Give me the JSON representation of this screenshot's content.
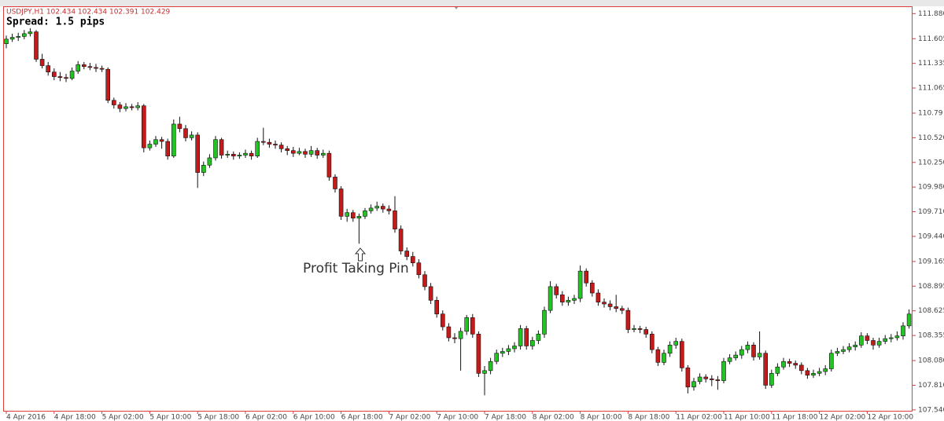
{
  "chart_data": {
    "type": "candlestick",
    "title": "USDJPY,H1  102.434 102.434 102.391 102.429",
    "subtitle": "Spread: 1.5 pips",
    "annotation": "Profit Taking Pin",
    "annotation_index": 59,
    "up_color": "#22c422",
    "down_color": "#c41a1a",
    "ylim": [
      107.53,
      111.96
    ],
    "yticks": [
      {
        "value": 111.88,
        "label": "111.880"
      },
      111.605,
      111.335,
      111.065,
      110.79,
      {
        "value": 110.52,
        "label": "110.520"
      },
      {
        "value": 110.25,
        "label": "110.250"
      },
      {
        "value": 109.98,
        "label": "109.980"
      },
      {
        "value": 109.71,
        "label": "109.710"
      },
      {
        "value": 109.44,
        "label": "109.440"
      },
      109.165,
      108.895,
      108.625,
      108.355,
      {
        "value": 108.08,
        "label": "108.080"
      },
      {
        "value": 107.81,
        "label": "107.810"
      },
      {
        "value": 107.54,
        "label": "107.540"
      }
    ],
    "categories": [
      "4 Apr 2016",
      null,
      null,
      null,
      null,
      null,
      null,
      null,
      "4 Apr 18:00",
      null,
      null,
      null,
      null,
      null,
      null,
      null,
      "5 Apr 02:00",
      null,
      null,
      null,
      null,
      null,
      null,
      null,
      "5 Apr 10:00",
      null,
      null,
      null,
      null,
      null,
      null,
      null,
      "5 Apr 18:00",
      null,
      null,
      null,
      null,
      null,
      null,
      null,
      "6 Apr 02:00",
      null,
      null,
      null,
      null,
      null,
      null,
      null,
      "6 Apr 10:00",
      null,
      null,
      null,
      null,
      null,
      null,
      null,
      "6 Apr 18:00",
      null,
      null,
      null,
      null,
      null,
      null,
      null,
      "7 Apr 02:00",
      null,
      null,
      null,
      null,
      null,
      null,
      null,
      "7 Apr 10:00",
      null,
      null,
      null,
      null,
      null,
      null,
      null,
      "7 Apr 18:00",
      null,
      null,
      null,
      null,
      null,
      null,
      null,
      "8 Apr 02:00",
      null,
      null,
      null,
      null,
      null,
      null,
      null,
      "8 Apr 10:00",
      null,
      null,
      null,
      null,
      null,
      null,
      null,
      "8 Apr 18:00",
      null,
      null,
      null,
      null,
      null,
      null,
      null,
      "11 Apr 02:00",
      null,
      null,
      null,
      null,
      null,
      null,
      null,
      "11 Apr 10:00",
      null,
      null,
      null,
      null,
      null,
      null,
      null,
      "11 Apr 18:00",
      null,
      null,
      null,
      null,
      null,
      null,
      null,
      "12 Apr 02:00",
      null,
      null,
      null,
      null,
      null,
      null,
      null,
      "12 Apr 10:00",
      null,
      null,
      null,
      null,
      null,
      null,
      null
    ],
    "ohlc": [
      [
        111.55,
        111.64,
        111.5,
        111.6
      ],
      [
        111.6,
        111.66,
        111.57,
        111.62
      ],
      [
        111.62,
        111.67,
        111.58,
        111.63
      ],
      [
        111.63,
        111.7,
        111.6,
        111.66
      ],
      [
        111.66,
        111.72,
        111.63,
        111.68
      ],
      [
        111.68,
        111.7,
        111.35,
        111.38
      ],
      [
        111.38,
        111.44,
        111.28,
        111.31
      ],
      [
        111.31,
        111.35,
        111.2,
        111.24
      ],
      [
        111.24,
        111.28,
        111.15,
        111.19
      ],
      [
        111.19,
        111.24,
        111.14,
        111.18
      ],
      [
        111.18,
        111.22,
        111.13,
        111.17
      ],
      [
        111.17,
        111.29,
        111.15,
        111.25
      ],
      [
        111.25,
        111.36,
        111.22,
        111.32
      ],
      [
        111.32,
        111.35,
        111.27,
        111.3
      ],
      [
        111.3,
        111.34,
        111.26,
        111.29
      ],
      [
        111.29,
        111.33,
        111.24,
        111.28
      ],
      [
        111.28,
        111.31,
        111.24,
        111.27
      ],
      [
        111.27,
        111.29,
        110.9,
        110.93
      ],
      [
        110.93,
        110.96,
        110.84,
        110.88
      ],
      [
        110.88,
        110.91,
        110.8,
        110.84
      ],
      [
        110.84,
        110.9,
        110.81,
        110.86
      ],
      [
        110.86,
        110.89,
        110.82,
        110.85
      ],
      [
        110.85,
        110.91,
        110.82,
        110.87
      ],
      [
        110.87,
        110.89,
        110.36,
        110.41
      ],
      [
        110.41,
        110.49,
        110.38,
        110.45
      ],
      [
        110.45,
        110.54,
        110.42,
        110.5
      ],
      [
        110.5,
        110.53,
        110.4,
        110.48
      ],
      [
        110.48,
        110.51,
        110.28,
        110.32
      ],
      [
        110.32,
        110.72,
        110.3,
        110.67
      ],
      [
        110.67,
        110.75,
        110.58,
        110.62
      ],
      [
        110.62,
        110.66,
        110.48,
        110.52
      ],
      [
        110.52,
        110.59,
        110.49,
        110.55
      ],
      [
        110.55,
        110.58,
        109.97,
        110.14
      ],
      [
        110.14,
        110.26,
        110.1,
        110.22
      ],
      [
        110.22,
        110.34,
        110.19,
        110.3
      ],
      [
        110.3,
        110.54,
        110.27,
        110.5
      ],
      [
        110.5,
        110.52,
        110.29,
        110.33
      ],
      [
        110.33,
        110.38,
        110.3,
        110.34
      ],
      [
        110.34,
        110.37,
        110.28,
        110.32
      ],
      [
        110.32,
        110.36,
        110.29,
        110.33
      ],
      [
        110.33,
        110.39,
        110.3,
        110.35
      ],
      [
        110.35,
        110.38,
        110.28,
        110.32
      ],
      [
        110.32,
        110.52,
        110.3,
        110.48
      ],
      [
        110.48,
        110.63,
        110.44,
        110.47
      ],
      [
        110.47,
        110.51,
        110.41,
        110.45
      ],
      [
        110.45,
        110.49,
        110.4,
        110.44
      ],
      [
        110.44,
        110.47,
        110.36,
        110.4
      ],
      [
        110.4,
        110.43,
        110.33,
        110.38
      ],
      [
        110.38,
        110.42,
        110.31,
        110.35
      ],
      [
        110.35,
        110.41,
        110.33,
        110.37
      ],
      [
        110.37,
        110.4,
        110.3,
        110.34
      ],
      [
        110.34,
        110.43,
        110.31,
        110.38
      ],
      [
        110.38,
        110.41,
        110.29,
        110.33
      ],
      [
        110.33,
        110.39,
        110.3,
        110.35
      ],
      [
        110.35,
        110.38,
        110.05,
        110.09
      ],
      [
        110.09,
        110.12,
        109.92,
        109.96
      ],
      [
        109.96,
        109.99,
        109.62,
        109.66
      ],
      [
        109.66,
        109.74,
        109.6,
        109.7
      ],
      [
        109.7,
        109.73,
        109.6,
        109.64
      ],
      [
        109.64,
        109.69,
        109.36,
        109.66
      ],
      [
        109.66,
        109.75,
        109.63,
        109.72
      ],
      [
        109.72,
        109.79,
        109.69,
        109.75
      ],
      [
        109.75,
        109.82,
        109.72,
        109.77
      ],
      [
        109.77,
        109.8,
        109.7,
        109.74
      ],
      [
        109.74,
        109.78,
        109.68,
        109.72
      ],
      [
        109.72,
        109.88,
        109.48,
        109.52
      ],
      [
        109.52,
        109.56,
        109.24,
        109.28
      ],
      [
        109.28,
        109.32,
        109.18,
        109.22
      ],
      [
        109.22,
        109.27,
        109.11,
        109.15
      ],
      [
        109.15,
        109.19,
        108.98,
        109.02
      ],
      [
        109.02,
        109.06,
        108.85,
        108.89
      ],
      [
        108.89,
        108.93,
        108.7,
        108.74
      ],
      [
        108.74,
        108.78,
        108.55,
        108.59
      ],
      [
        108.59,
        108.63,
        108.41,
        108.45
      ],
      [
        108.45,
        108.49,
        108.29,
        108.33
      ],
      [
        108.33,
        108.38,
        108.27,
        108.32
      ],
      [
        108.32,
        108.44,
        107.97,
        108.4
      ],
      [
        108.4,
        108.58,
        108.36,
        108.55
      ],
      [
        108.55,
        108.59,
        108.33,
        108.37
      ],
      [
        108.37,
        108.4,
        107.9,
        107.94
      ],
      [
        107.94,
        108.02,
        107.7,
        107.97
      ],
      [
        107.97,
        108.11,
        107.93,
        108.07
      ],
      [
        108.07,
        108.2,
        108.04,
        108.16
      ],
      [
        108.16,
        108.22,
        108.12,
        108.18
      ],
      [
        108.18,
        108.25,
        108.14,
        108.21
      ],
      [
        108.21,
        108.28,
        108.17,
        108.24
      ],
      [
        108.24,
        108.47,
        108.2,
        108.43
      ],
      [
        108.43,
        108.46,
        108.2,
        108.24
      ],
      [
        108.24,
        108.34,
        108.2,
        108.3
      ],
      [
        108.3,
        108.41,
        108.26,
        108.37
      ],
      [
        108.37,
        108.67,
        108.33,
        108.63
      ],
      [
        108.63,
        108.95,
        108.6,
        108.89
      ],
      [
        108.89,
        108.92,
        108.76,
        108.8
      ],
      [
        108.8,
        108.84,
        108.68,
        108.72
      ],
      [
        108.72,
        108.78,
        108.68,
        108.74
      ],
      [
        108.74,
        108.8,
        108.7,
        108.76
      ],
      [
        108.76,
        109.12,
        108.72,
        109.06
      ],
      [
        109.06,
        109.09,
        108.89,
        108.93
      ],
      [
        108.93,
        108.96,
        108.78,
        108.82
      ],
      [
        108.82,
        108.86,
        108.68,
        108.72
      ],
      [
        108.72,
        108.76,
        108.66,
        108.7
      ],
      [
        108.7,
        108.74,
        108.63,
        108.67
      ],
      [
        108.67,
        108.8,
        108.61,
        108.65
      ],
      [
        108.65,
        108.68,
        108.59,
        108.63
      ],
      [
        108.63,
        108.66,
        108.38,
        108.42
      ],
      [
        108.42,
        108.47,
        108.39,
        108.43
      ],
      [
        108.43,
        108.46,
        108.38,
        108.42
      ],
      [
        108.42,
        108.45,
        108.33,
        108.37
      ],
      [
        108.37,
        108.4,
        108.16,
        108.2
      ],
      [
        108.2,
        108.23,
        108.02,
        108.06
      ],
      [
        108.06,
        108.2,
        108.03,
        108.16
      ],
      [
        108.16,
        108.29,
        108.12,
        108.25
      ],
      [
        108.25,
        108.33,
        108.21,
        108.29
      ],
      [
        108.29,
        108.32,
        107.96,
        108.0
      ],
      [
        108.0,
        108.03,
        107.72,
        107.79
      ],
      [
        107.79,
        107.89,
        107.75,
        107.85
      ],
      [
        107.85,
        107.94,
        107.82,
        107.9
      ],
      [
        107.9,
        107.93,
        107.84,
        107.88
      ],
      [
        107.88,
        107.92,
        107.8,
        107.87
      ],
      [
        107.87,
        107.91,
        107.76,
        107.86
      ],
      [
        107.86,
        108.11,
        107.83,
        108.07
      ],
      [
        108.07,
        108.15,
        108.04,
        108.11
      ],
      [
        108.11,
        108.18,
        108.08,
        108.14
      ],
      [
        108.14,
        108.24,
        108.1,
        108.2
      ],
      [
        108.2,
        108.29,
        108.16,
        108.25
      ],
      [
        108.25,
        108.28,
        108.08,
        108.12
      ],
      [
        108.12,
        108.4,
        108.09,
        108.16
      ],
      [
        108.16,
        108.19,
        107.77,
        107.81
      ],
      [
        107.81,
        107.98,
        107.78,
        107.94
      ],
      [
        107.94,
        108.05,
        107.91,
        108.01
      ],
      [
        108.01,
        108.11,
        107.98,
        108.07
      ],
      [
        108.07,
        108.1,
        108.01,
        108.05
      ],
      [
        108.05,
        108.08,
        107.99,
        108.03
      ],
      [
        108.03,
        108.06,
        107.93,
        107.97
      ],
      [
        107.97,
        108.0,
        107.88,
        107.92
      ],
      [
        107.92,
        107.98,
        107.89,
        107.94
      ],
      [
        107.94,
        108.0,
        107.91,
        107.96
      ],
      [
        107.96,
        108.03,
        107.92,
        107.99
      ],
      [
        107.99,
        108.2,
        107.96,
        108.16
      ],
      [
        108.16,
        108.22,
        108.13,
        108.18
      ],
      [
        108.18,
        108.24,
        108.15,
        108.2
      ],
      [
        108.2,
        108.27,
        108.17,
        108.23
      ],
      [
        108.23,
        108.29,
        108.19,
        108.25
      ],
      [
        108.25,
        108.39,
        108.22,
        108.35
      ],
      [
        108.35,
        108.38,
        108.26,
        108.3
      ],
      [
        108.3,
        108.33,
        108.2,
        108.25
      ],
      [
        108.25,
        108.33,
        108.22,
        108.29
      ],
      [
        108.29,
        108.36,
        108.26,
        108.32
      ],
      [
        108.32,
        108.37,
        108.28,
        108.33
      ],
      [
        108.33,
        108.4,
        108.3,
        108.35
      ],
      [
        108.35,
        108.5,
        108.31,
        108.46
      ],
      [
        108.46,
        108.64,
        108.43,
        108.59
      ]
    ]
  }
}
